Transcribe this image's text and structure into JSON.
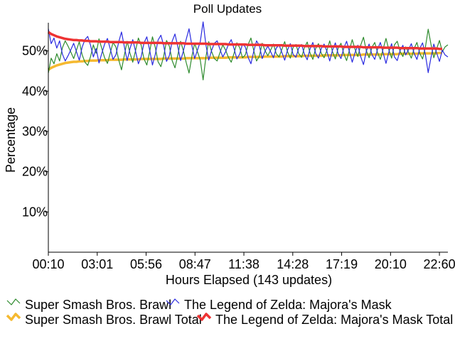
{
  "chart_data": {
    "type": "line",
    "title": "Poll Updates",
    "xlabel": "Hours Elapsed (143 updates)",
    "ylabel": "Percentage",
    "x_tick_labels": [
      "00:10",
      "03:01",
      "05:56",
      "08:47",
      "11:38",
      "14:28",
      "17:19",
      "20:10",
      "22:60"
    ],
    "y_ticks": [
      10,
      20,
      30,
      40,
      50
    ],
    "y_tick_labels": [
      "10%",
      "20%",
      "30%",
      "40%",
      "50%"
    ],
    "ylim": [
      0,
      57
    ],
    "n_updates": 143,
    "grid": false,
    "legend_position": "bottom",
    "series": [
      {
        "name": "Super Smash Bros. Brawl",
        "color": "#2e8b2e",
        "values": [
          44.5,
          48.2,
          46.8,
          49.3,
          47.5,
          50.8,
          52.5,
          51.2,
          49.7,
          48.1,
          50.2,
          52.3,
          49.1,
          47.2,
          46.4,
          48.6,
          51.5,
          49.4,
          53.0,
          50.6,
          48.3,
          46.9,
          49.5,
          52.1,
          51.0,
          47.8,
          45.3,
          48.9,
          52.4,
          49.5,
          47.2,
          50.1,
          53.2,
          51.4,
          48.0,
          46.5,
          49.8,
          53.5,
          50.9,
          47.3,
          46.1,
          48.7,
          52.6,
          51.2,
          47.6,
          45.8,
          48.9,
          52.4,
          50.0,
          47.1,
          44.5,
          48.6,
          51.9,
          49.8,
          47.7,
          42.8,
          48.5,
          52.3,
          49.9,
          48.1,
          47.5,
          49.6,
          51.5,
          50.2,
          48.4,
          47.2,
          49.4,
          52.0,
          50.8,
          48.3,
          49.0,
          51.6,
          53.2,
          50.1,
          47.5,
          48.7,
          51.9,
          50.1,
          48.8,
          50.2,
          51.7,
          49.3,
          48.5,
          50.4,
          52.3,
          49.8,
          48.2,
          50.9,
          51.6,
          49.3,
          48.4,
          50.8,
          52.2,
          49.5,
          47.9,
          50.6,
          51.8,
          49.4,
          48.3,
          50.1,
          52.5,
          49.8,
          48.0,
          50.7,
          51.9,
          49.3,
          47.6,
          50.2,
          52.8,
          50.4,
          48.6,
          51.4,
          53.4,
          50.1,
          48.3,
          50.9,
          52.1,
          49.6,
          47.9,
          50.5,
          53.1,
          50.3,
          48.2,
          51.5,
          52.4,
          49.9,
          48.6,
          51.0,
          49.7,
          48.2,
          50.6,
          52.1,
          49.4,
          48.0,
          50.9,
          55.4,
          51.6,
          48.3,
          50.5,
          52.6,
          49.8,
          51.0,
          51.5
        ]
      },
      {
        "name": "The Legend of Zelda: Majora's Mask",
        "color": "#2a2ae0",
        "values": [
          55.5,
          51.8,
          53.2,
          50.7,
          52.5,
          49.2,
          47.5,
          48.8,
          50.3,
          51.9,
          49.8,
          47.7,
          50.9,
          52.8,
          53.6,
          51.4,
          48.5,
          50.6,
          47.0,
          49.4,
          51.7,
          53.1,
          50.5,
          47.9,
          49.0,
          52.2,
          54.7,
          51.1,
          47.6,
          50.5,
          52.8,
          49.9,
          46.8,
          48.6,
          52.0,
          53.5,
          50.2,
          46.5,
          49.1,
          52.7,
          53.9,
          51.3,
          47.4,
          48.8,
          52.4,
          54.2,
          51.1,
          47.6,
          50.0,
          52.9,
          55.5,
          51.4,
          48.1,
          50.2,
          52.3,
          57.2,
          51.5,
          47.7,
          50.1,
          51.9,
          52.5,
          50.4,
          48.5,
          49.8,
          51.6,
          52.8,
          50.6,
          48.0,
          49.2,
          51.7,
          51.0,
          48.4,
          46.8,
          49.9,
          52.5,
          51.3,
          48.1,
          49.9,
          51.2,
          49.8,
          48.3,
          50.7,
          51.5,
          49.6,
          47.7,
          50.2,
          51.8,
          49.1,
          48.4,
          50.7,
          51.6,
          49.2,
          47.8,
          50.5,
          52.1,
          49.4,
          48.2,
          50.6,
          51.7,
          49.9,
          47.5,
          50.2,
          52.0,
          49.3,
          48.1,
          50.7,
          52.4,
          49.8,
          47.2,
          49.6,
          51.4,
          48.6,
          46.6,
          49.9,
          51.7,
          49.1,
          47.9,
          50.4,
          52.1,
          49.5,
          46.9,
          49.7,
          51.8,
          48.5,
          47.6,
          50.1,
          51.4,
          49.0,
          50.3,
          51.8,
          49.4,
          47.9,
          50.6,
          52.0,
          49.1,
          44.6,
          48.4,
          51.7,
          49.5,
          47.4,
          50.2,
          49.0,
          48.5
        ]
      },
      {
        "name": "Super Smash Bros. Brawl Total",
        "color": "#f5b930",
        "values": [
          45.3,
          45.8,
          46.1,
          46.4,
          46.6,
          46.8,
          47.0,
          47.1,
          47.2,
          47.3,
          47.3,
          47.4,
          47.4,
          47.5,
          47.5,
          47.6,
          47.6,
          47.6,
          47.7,
          47.7,
          47.7,
          47.7,
          47.8,
          47.8,
          47.8,
          47.8,
          47.8,
          47.9,
          47.9,
          47.9,
          47.9,
          47.9,
          47.9,
          48.0,
          48.0,
          48.0,
          48.0,
          48.0,
          48.0,
          48.0,
          48.0,
          48.1,
          48.1,
          48.1,
          48.1,
          48.1,
          48.1,
          48.1,
          48.1,
          48.2,
          48.2,
          48.2,
          48.2,
          48.2,
          48.2,
          48.2,
          48.2,
          48.3,
          48.3,
          48.3,
          48.3,
          48.3,
          48.3,
          48.3,
          48.4,
          48.4,
          48.4,
          48.4,
          48.4,
          48.4,
          48.4,
          48.5,
          48.5,
          48.5,
          48.5,
          48.5,
          48.5,
          48.6,
          48.6,
          48.6,
          48.6,
          48.6,
          48.6,
          48.6,
          48.7,
          48.7,
          48.7,
          48.7,
          48.7,
          48.7,
          48.7,
          48.8,
          48.8,
          48.8,
          48.8,
          48.8,
          48.8,
          48.8,
          48.9,
          48.9,
          48.9,
          48.9,
          48.9,
          48.9,
          48.9,
          49.0,
          49.0,
          49.0,
          49.0,
          49.0,
          49.0,
          49.0,
          49.1,
          49.1,
          49.1,
          49.1,
          49.1,
          49.1,
          49.1,
          49.2,
          49.2,
          49.2,
          49.2,
          49.2,
          49.2,
          49.3,
          49.3,
          49.3,
          49.3,
          49.3,
          49.3,
          49.3,
          49.4,
          49.4,
          49.4,
          49.4,
          49.4,
          49.4,
          49.4,
          49.5,
          49.5
        ]
      },
      {
        "name": "The Legend of Zelda: Majora's Mask Total",
        "color": "#ee3333",
        "values": [
          54.7,
          54.2,
          53.9,
          53.6,
          53.4,
          53.2,
          53.0,
          52.9,
          52.8,
          52.7,
          52.7,
          52.6,
          52.6,
          52.5,
          52.5,
          52.4,
          52.4,
          52.4,
          52.3,
          52.3,
          52.3,
          52.3,
          52.2,
          52.2,
          52.2,
          52.2,
          52.2,
          52.1,
          52.1,
          52.1,
          52.1,
          52.1,
          52.1,
          52.0,
          52.0,
          52.0,
          52.0,
          52.0,
          52.0,
          52.0,
          52.0,
          51.9,
          51.9,
          51.9,
          51.9,
          51.9,
          51.9,
          51.9,
          51.9,
          51.8,
          51.8,
          51.8,
          51.8,
          51.8,
          51.8,
          51.8,
          51.8,
          51.7,
          51.7,
          51.7,
          51.7,
          51.7,
          51.7,
          51.7,
          51.6,
          51.6,
          51.6,
          51.6,
          51.6,
          51.6,
          51.6,
          51.5,
          51.5,
          51.5,
          51.5,
          51.5,
          51.5,
          51.4,
          51.4,
          51.4,
          51.4,
          51.4,
          51.4,
          51.4,
          51.3,
          51.3,
          51.3,
          51.3,
          51.3,
          51.3,
          51.3,
          51.2,
          51.2,
          51.2,
          51.2,
          51.2,
          51.2,
          51.2,
          51.1,
          51.1,
          51.1,
          51.1,
          51.1,
          51.1,
          51.1,
          51.0,
          51.0,
          51.0,
          51.0,
          51.0,
          51.0,
          51.0,
          50.9,
          50.9,
          50.9,
          50.9,
          50.9,
          50.9,
          50.9,
          50.8,
          50.8,
          50.8,
          50.8,
          50.8,
          50.8,
          50.7,
          50.7,
          50.7,
          50.7,
          50.7,
          50.7,
          50.7,
          50.6,
          50.6,
          50.6,
          50.6,
          50.6,
          50.6,
          50.6,
          50.5,
          50.5
        ]
      }
    ]
  }
}
